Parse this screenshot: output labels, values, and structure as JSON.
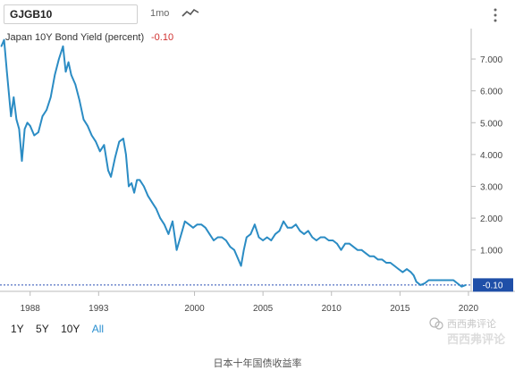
{
  "toolbar": {
    "ticker": "GJGB10",
    "interval": "1mo",
    "chart_type_icon": "line-chart-icon",
    "menu_icon": "vertical-dots-icon"
  },
  "ranges": {
    "items": [
      "1Y",
      "5Y",
      "10Y",
      "All"
    ],
    "active": "All"
  },
  "caption": "日本十年国债收益率",
  "watermark": {
    "line1": "西西弗评论",
    "line2": "西西弗评论"
  },
  "colors": {
    "series": "#2b8cc4",
    "negative_value": "#d0302f",
    "last_value_tag": "#1f4fa8",
    "active_range": "#2a8fd0"
  },
  "chart_data": {
    "type": "line",
    "title": "Japan 10Y Bond Yield (percent)",
    "last_value_label": "-0.10",
    "last_value": -0.1,
    "xlim": [
      1985.8,
      2020.2
    ],
    "ylim": [
      -0.3,
      7.9
    ],
    "x_ticks": [
      1988,
      1993,
      2000,
      2005,
      2010,
      2015,
      2020
    ],
    "y_ticks": [
      1.0,
      2.0,
      3.0,
      4.0,
      5.0,
      6.0,
      7.0
    ],
    "y_tick_labels": [
      "1.000",
      "2.000",
      "3.000",
      "4.000",
      "5.000",
      "6.000",
      "7.000"
    ],
    "grid": "none",
    "series": [
      {
        "x": [
          1985.9,
          1986.1,
          1986.3,
          1986.6,
          1986.8,
          1987.0,
          1987.2,
          1987.4,
          1987.6,
          1987.8,
          1988.0,
          1988.3,
          1988.6,
          1988.9,
          1989.2,
          1989.5,
          1989.8,
          1990.1,
          1990.4,
          1990.6,
          1990.8,
          1991.0,
          1991.3,
          1991.6,
          1991.9,
          1992.2,
          1992.5,
          1992.8,
          1993.1,
          1993.4,
          1993.7,
          1993.9,
          1994.2,
          1994.5,
          1994.8,
          1995.0,
          1995.2,
          1995.4,
          1995.6,
          1995.8,
          1996.0,
          1996.3,
          1996.6,
          1996.9,
          1997.2,
          1997.5,
          1997.8,
          1998.1,
          1998.4,
          1998.7,
          1998.9,
          1999.1,
          1999.3,
          1999.6,
          1999.9,
          2000.2,
          2000.5,
          2000.8,
          2001.1,
          2001.4,
          2001.7,
          2002.0,
          2002.3,
          2002.6,
          2002.9,
          2003.2,
          2003.4,
          2003.6,
          2003.8,
          2004.1,
          2004.4,
          2004.7,
          2005.0,
          2005.3,
          2005.6,
          2005.9,
          2006.2,
          2006.5,
          2006.8,
          2007.1,
          2007.4,
          2007.7,
          2008.0,
          2008.3,
          2008.6,
          2008.9,
          2009.2,
          2009.5,
          2009.8,
          2010.1,
          2010.4,
          2010.7,
          2011.0,
          2011.3,
          2011.6,
          2011.9,
          2012.2,
          2012.5,
          2012.8,
          2013.1,
          2013.4,
          2013.7,
          2014.0,
          2014.3,
          2014.6,
          2014.9,
          2015.2,
          2015.5,
          2015.8,
          2016.0,
          2016.2,
          2016.5,
          2016.8,
          2017.1,
          2017.4,
          2017.7,
          2018.0,
          2018.3,
          2018.6,
          2018.9,
          2019.2,
          2019.5,
          2019.8
        ],
        "values": [
          7.4,
          7.6,
          6.6,
          5.2,
          5.8,
          5.1,
          4.8,
          3.8,
          4.8,
          5.0,
          4.9,
          4.6,
          4.7,
          5.2,
          5.4,
          5.8,
          6.5,
          7.0,
          7.4,
          6.6,
          6.9,
          6.5,
          6.2,
          5.7,
          5.1,
          4.9,
          4.6,
          4.4,
          4.1,
          4.3,
          3.5,
          3.3,
          3.9,
          4.4,
          4.5,
          4.0,
          3.0,
          3.1,
          2.8,
          3.2,
          3.2,
          3.0,
          2.7,
          2.5,
          2.3,
          2.0,
          1.8,
          1.5,
          1.9,
          1.0,
          1.3,
          1.6,
          1.9,
          1.8,
          1.7,
          1.8,
          1.8,
          1.7,
          1.5,
          1.3,
          1.4,
          1.4,
          1.3,
          1.1,
          1.0,
          0.7,
          0.5,
          1.0,
          1.4,
          1.5,
          1.8,
          1.4,
          1.3,
          1.4,
          1.3,
          1.5,
          1.6,
          1.9,
          1.7,
          1.7,
          1.8,
          1.6,
          1.5,
          1.6,
          1.4,
          1.3,
          1.4,
          1.4,
          1.3,
          1.3,
          1.2,
          1.0,
          1.2,
          1.2,
          1.1,
          1.0,
          1.0,
          0.9,
          0.8,
          0.8,
          0.7,
          0.7,
          0.6,
          0.6,
          0.5,
          0.4,
          0.3,
          0.4,
          0.3,
          0.2,
          0.0,
          -0.1,
          -0.05,
          0.05,
          0.05,
          0.05,
          0.05,
          0.05,
          0.05,
          0.05,
          -0.05,
          -0.15,
          -0.1
        ]
      }
    ]
  }
}
